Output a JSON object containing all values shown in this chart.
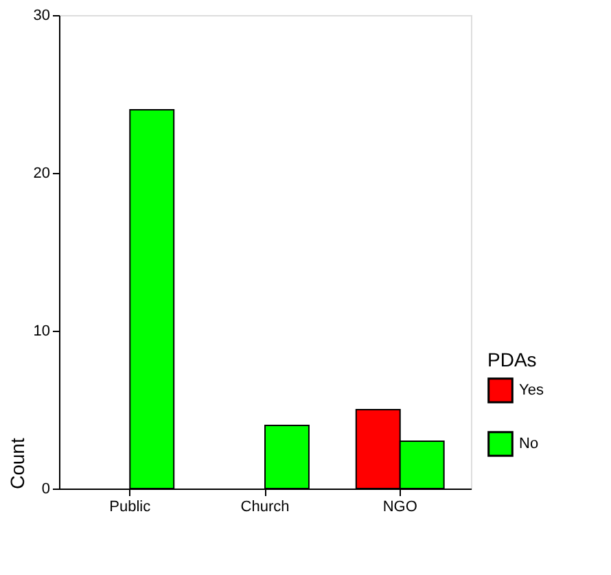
{
  "chart_data": {
    "type": "bar",
    "ylabel": "Count",
    "legend_title": "PDAs",
    "categories": [
      "Public",
      "Church",
      "NGO"
    ],
    "series": [
      {
        "name": "Yes",
        "color": "#ff0000",
        "values": [
          null,
          null,
          5
        ]
      },
      {
        "name": "No",
        "color": "#00ff00",
        "values": [
          24,
          4,
          3
        ]
      }
    ],
    "ylim": [
      0,
      30
    ],
    "yticks": [
      0,
      10,
      20,
      30
    ],
    "grid": false,
    "legend": "bottom right"
  }
}
